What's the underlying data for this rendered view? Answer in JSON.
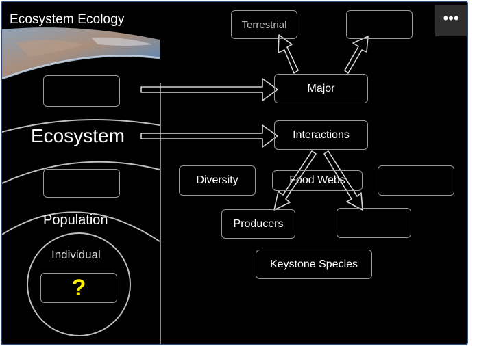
{
  "slide": {
    "title": "Ecosystem Ecology",
    "menu_icon": "more-horizontal-icon",
    "menu_glyph": "•••"
  },
  "levels": {
    "ecosystem": "Ecosystem",
    "population": "Population",
    "individual": "Individual",
    "individual_answer": "?"
  },
  "concept_map": {
    "terrestrial": "Terrestrial",
    "major": "Major",
    "interactions": "Interactions",
    "diversity": "Diversity",
    "food_webs": "Food Webs",
    "producers": "Producers",
    "keystone_species": "Keystone Species"
  },
  "colors": {
    "background": "#000000",
    "line": "#9a9a9a",
    "question": "#fff200"
  }
}
